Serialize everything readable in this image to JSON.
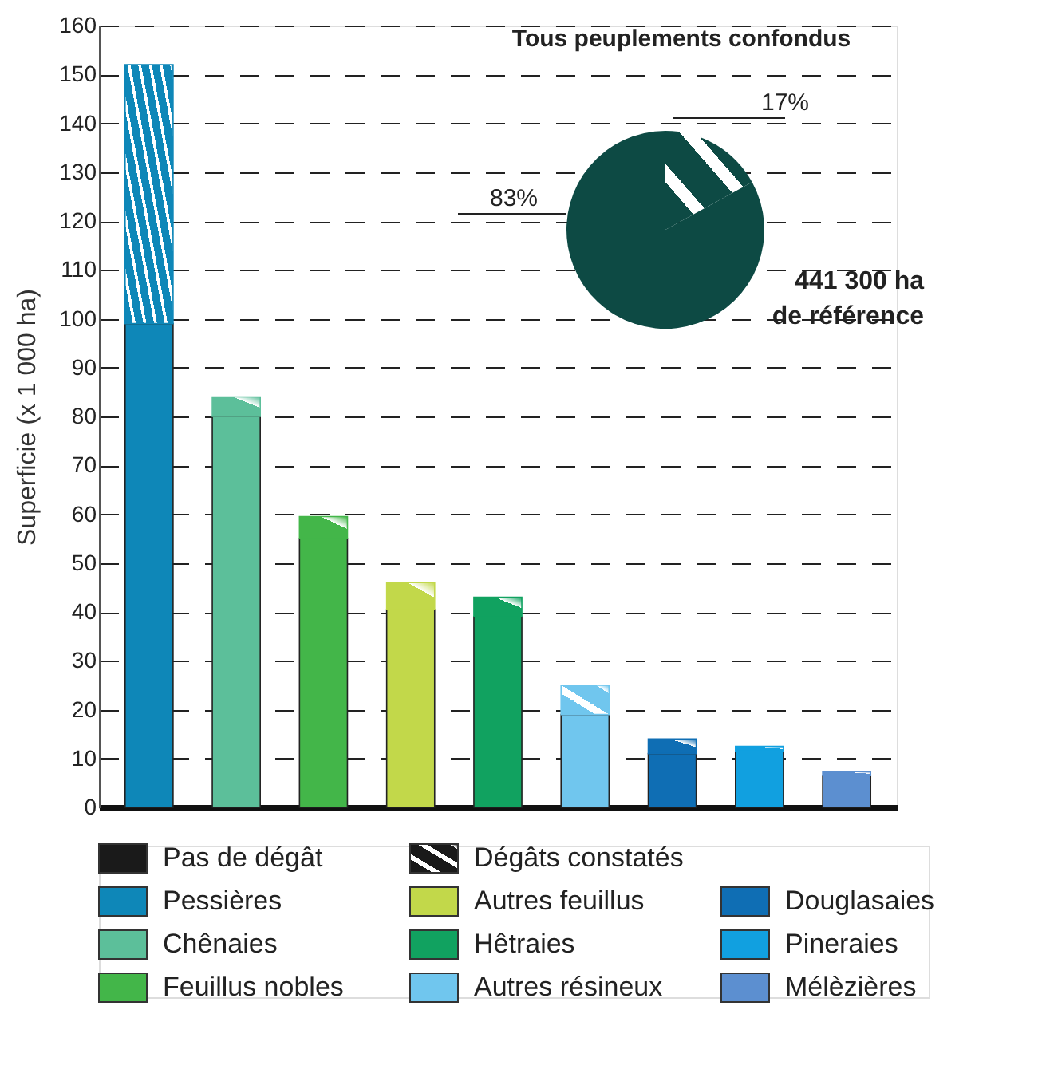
{
  "chart_data": [
    {
      "type": "bar",
      "stacked": true,
      "ylabel": "Superficie (x 1 000 ha)",
      "categories": [
        null,
        null,
        null,
        null,
        null,
        null,
        null,
        null,
        null
      ],
      "series": [
        {
          "name": "Pessières",
          "color": "#0e87b8",
          "values": [
            99,
            null,
            null,
            null,
            null,
            null,
            null,
            null,
            null
          ]
        },
        {
          "name": "Chênaies",
          "color": "#5cbf9a",
          "values": [
            null,
            80,
            null,
            null,
            null,
            null,
            null,
            null,
            null
          ]
        },
        {
          "name": "Feuillus nobles",
          "color": "#43b649",
          "values": [
            null,
            null,
            55,
            null,
            null,
            null,
            null,
            null,
            null
          ]
        },
        {
          "name": "Autres feuillus",
          "color": "#c2d84a",
          "values": [
            null,
            null,
            null,
            40.5,
            null,
            null,
            null,
            null,
            null
          ]
        },
        {
          "name": "Hêtraies",
          "color": "#11a260",
          "values": [
            null,
            null,
            null,
            null,
            39,
            null,
            null,
            null,
            null
          ]
        },
        {
          "name": "Autres résineux",
          "color": "#70c6ee",
          "values": [
            null,
            null,
            null,
            null,
            null,
            19,
            null,
            null,
            null
          ]
        },
        {
          "name": "Douglasaies",
          "color": "#0f6eb4",
          "values": [
            null,
            null,
            null,
            null,
            null,
            null,
            11,
            null,
            null
          ]
        },
        {
          "name": "Pineraies",
          "color": "#11a0e0",
          "values": [
            null,
            null,
            null,
            null,
            null,
            null,
            null,
            11.5,
            null
          ]
        },
        {
          "name": "Mélèzières",
          "color": "#5c8fd0",
          "values": [
            null,
            null,
            null,
            null,
            null,
            null,
            null,
            null,
            6.5
          ]
        },
        {
          "name": "Dégâts constatés",
          "color": "#1a1a1a",
          "colors": [
            "#0e87b8",
            "#5cbf9a",
            "#43b649",
            "#c2d84a",
            "#11a260",
            "#70c6ee",
            "#0f6eb4",
            "#11a0e0",
            "#5c8fd0"
          ],
          "values": [
            53,
            4,
            4.5,
            5.5,
            4,
            6,
            3,
            1,
            0.8
          ]
        }
      ],
      "annotations": [
        "Pas de dégât"
      ],
      "ylim": [
        0,
        160
      ],
      "yticks": [
        0,
        10,
        20,
        30,
        40,
        50,
        60,
        70,
        80,
        90,
        100,
        110,
        120,
        130,
        140,
        150,
        160
      ],
      "grid": "y",
      "line_style": "dashed",
      "tick_labels": "y",
      "legend": "bottom"
    },
    {
      "type": "pie",
      "title": "Tous peuplements confondus",
      "categories": [
        null,
        null
      ],
      "values": [
        17,
        83
      ],
      "colors": [
        "#0d4a44",
        "#0d4a44"
      ],
      "value_labels": [
        "17%",
        "83%"
      ],
      "annotations": [
        "441 300 ha de référence"
      ]
    }
  ]
}
